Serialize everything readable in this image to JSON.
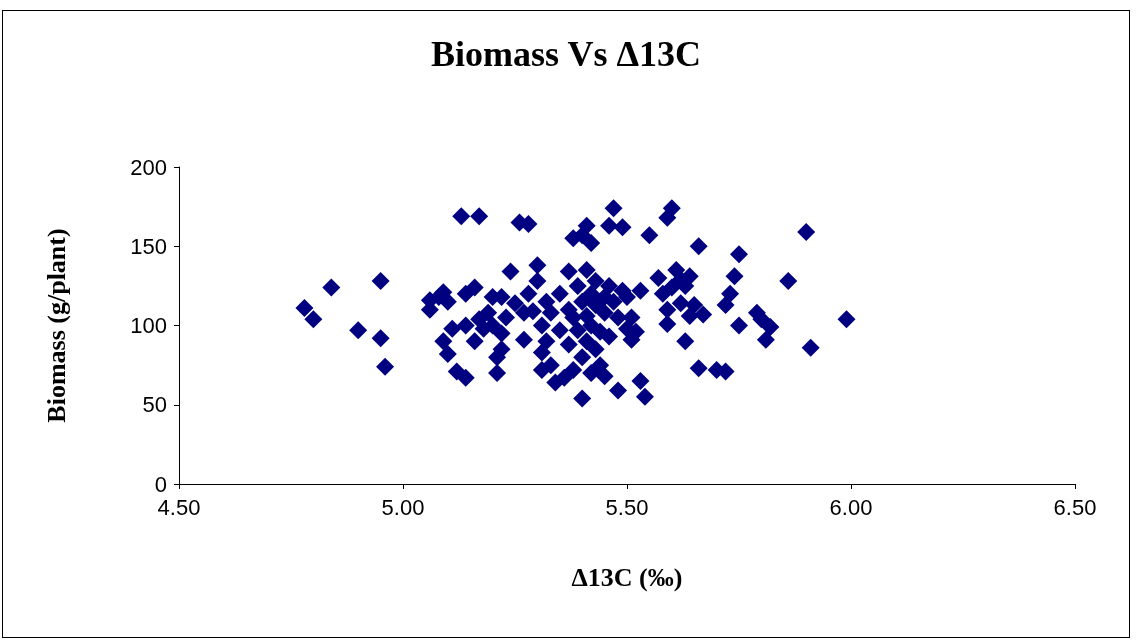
{
  "chart_data": {
    "type": "scatter",
    "title": "Biomass Vs Δ13C",
    "xlabel": "Δ13C (‰)",
    "ylabel": "Biomass (g/plant)",
    "xlim": [
      4.5,
      6.5
    ],
    "xticks": [
      {
        "value": 4.5,
        "label": "4.50"
      },
      {
        "value": 5,
        "label": "5.00"
      },
      {
        "value": 5.5,
        "label": "5.50"
      },
      {
        "value": 6,
        "label": "6.00"
      },
      {
        "value": 6.5,
        "label": "6.50"
      }
    ],
    "ylim": [
      0,
      200
    ],
    "yticks": [
      0,
      50,
      100,
      150,
      200
    ],
    "grid": false,
    "marker": "diamond",
    "series": [
      {
        "color": "#000080",
        "x": [
          4.78,
          4.8,
          4.84,
          4.9,
          4.95,
          4.95,
          4.96,
          5.06,
          5.06,
          5.08,
          5.09,
          5.1,
          5.09,
          5.1,
          5.11,
          5.12,
          5.13,
          5.14,
          5.14,
          5.14,
          5.16,
          5.16,
          5.17,
          5.17,
          5.18,
          5.19,
          5.2,
          5.2,
          5.21,
          5.21,
          5.22,
          5.22,
          5.22,
          5.23,
          5.24,
          5.25,
          5.26,
          5.27,
          5.28,
          5.28,
          5.27,
          5.29,
          5.3,
          5.3,
          5.31,
          5.31,
          5.31,
          5.32,
          5.32,
          5.33,
          5.33,
          5.34,
          5.35,
          5.35,
          5.36,
          5.37,
          5.37,
          5.37,
          5.38,
          5.38,
          5.38,
          5.39,
          5.39,
          5.4,
          5.4,
          5.4,
          5.4,
          5.41,
          5.41,
          5.41,
          5.41,
          5.42,
          5.42,
          5.42,
          5.42,
          5.43,
          5.43,
          5.43,
          5.44,
          5.44,
          5.45,
          5.45,
          5.45,
          5.46,
          5.46,
          5.46,
          5.47,
          5.47,
          5.48,
          5.48,
          5.49,
          5.49,
          5.5,
          5.5,
          5.51,
          5.51,
          5.52,
          5.53,
          5.53,
          5.54,
          5.55,
          5.57,
          5.58,
          5.59,
          5.59,
          5.59,
          5.6,
          5.6,
          5.61,
          5.62,
          5.62,
          5.63,
          5.63,
          5.64,
          5.64,
          5.65,
          5.66,
          5.66,
          5.67,
          5.7,
          5.72,
          5.72,
          5.73,
          5.74,
          5.75,
          5.75,
          5.79,
          5.8,
          5.81,
          5.82,
          5.86,
          5.9,
          5.91,
          5.99
        ],
        "values": [
          111,
          104,
          124,
          97,
          128,
          92,
          74,
          110,
          116,
          118,
          121,
          115,
          90,
          82,
          98,
          71,
          169,
          120,
          100,
          67,
          124,
          90,
          169,
          104,
          98,
          108,
          118,
          100,
          80,
          70,
          118,
          95,
          85,
          105,
          134,
          114,
          165,
          108,
          164,
          120,
          91,
          109,
          138,
          128,
          100,
          83,
          72,
          115,
          90,
          108,
          75,
          64,
          120,
          97,
          67,
          134,
          110,
          88,
          155,
          105,
          72,
          125,
          97,
          157,
          115,
          80,
          54,
          163,
          135,
          106,
          90,
          152,
          120,
          100,
          70,
          128,
          113,
          85,
          96,
          75,
          118,
          108,
          68,
          163,
          125,
          93,
          174,
          115,
          59,
          105,
          122,
          162,
          118,
          98,
          105,
          91,
          96,
          65,
          122,
          55,
          157,
          130,
          120,
          168,
          110,
          101,
          174,
          124,
          135,
          129,
          114,
          90,
          125,
          106,
          131,
          113,
          150,
          73,
          107,
          72,
          71,
          113,
          120,
          131,
          145,
          100,
          108,
          104,
          91,
          99,
          128,
          159,
          86,
          104
        ]
      }
    ]
  }
}
